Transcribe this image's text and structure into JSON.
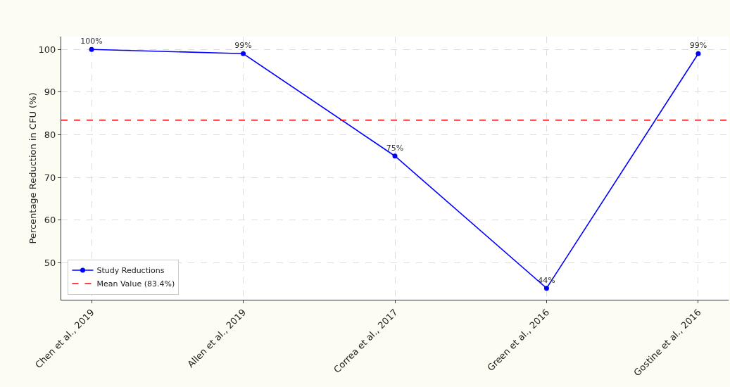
{
  "chart_data": {
    "type": "line",
    "ylabel": "Percentage Reduction in CFU (%)",
    "categories": [
      "Chen et al., 2019",
      "Allen et al., 2019",
      "Correa et al., 2017",
      "Green et al., 2016",
      "Gostine et al., 2016"
    ],
    "series": [
      {
        "name": "Study Reductions",
        "color": "#0000ff",
        "values": [
          100,
          99,
          75,
          44,
          99
        ],
        "value_labels": [
          "100%",
          "99%",
          "75%",
          "44%",
          "99%"
        ]
      }
    ],
    "ref_lines": [
      {
        "axis": "y",
        "value": 83.4,
        "label": "Mean Value (83.4%)",
        "color": "#ff0000",
        "line_style": "dashed"
      }
    ],
    "ylim": [
      41.3,
      103
    ],
    "yticks": [
      50,
      60,
      70,
      80,
      90,
      100
    ],
    "grid": true,
    "legend": "bottom left",
    "marker": "circle",
    "line_style": "solid"
  }
}
